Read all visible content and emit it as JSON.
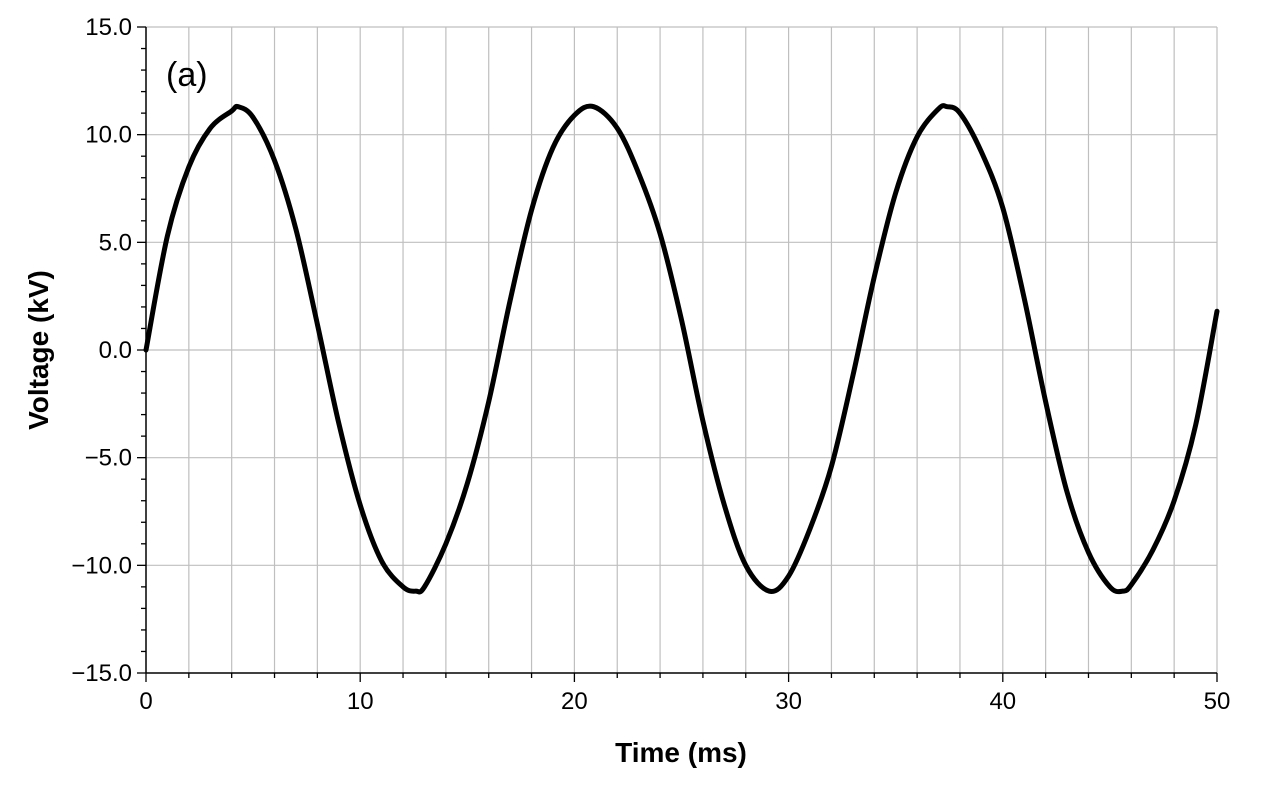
{
  "chart_data": {
    "type": "line",
    "panel_label": "(a)",
    "title": "",
    "xlabel": "Time (ms)",
    "ylabel": "Voltage (kV)",
    "xlim": [
      0,
      50
    ],
    "ylim": [
      -15,
      15
    ],
    "x_ticks": [
      0,
      10,
      20,
      30,
      40,
      50
    ],
    "x_tick_labels": [
      "0",
      "10",
      "20",
      "30",
      "40",
      "50"
    ],
    "x_minor_step": 2,
    "y_ticks": [
      15,
      10,
      5,
      0,
      -5,
      -10,
      -15
    ],
    "y_tick_labels": [
      "15.0",
      "10.0",
      "5.0",
      "0.0",
      "−5.0",
      "−10.0",
      "−15.0"
    ],
    "y_minor_step": 1,
    "grid": true,
    "legend": "none",
    "line_color": "#000000",
    "grid_color": "#bfbfbf",
    "series": [
      {
        "x": [
          0,
          1,
          2,
          3,
          4,
          4.3,
          5,
          6,
          7,
          8,
          9,
          10,
          11,
          12,
          12.6,
          13,
          14,
          15,
          16,
          17,
          18,
          19,
          20,
          20.9,
          22,
          23,
          24,
          25,
          26,
          27,
          28,
          29.1,
          30,
          31,
          32,
          33,
          34,
          35,
          36,
          37,
          37.4,
          38,
          39,
          40,
          41,
          42,
          43,
          44,
          45,
          45.6,
          46,
          47,
          48,
          49,
          50
        ],
        "y": [
          0,
          5.3,
          8.5,
          10.3,
          11.1,
          11.3,
          10.8,
          8.8,
          5.6,
          1.2,
          -3.4,
          -7.2,
          -9.8,
          -11.0,
          -11.2,
          -11.0,
          -9.0,
          -6.2,
          -2.4,
          2.3,
          6.5,
          9.4,
          10.9,
          11.3,
          10.3,
          8.2,
          5.4,
          1.4,
          -3.3,
          -7.2,
          -10.0,
          -11.2,
          -10.5,
          -8.3,
          -5.4,
          -1.2,
          3.4,
          7.3,
          9.9,
          11.2,
          11.3,
          11.0,
          9.2,
          6.6,
          2.4,
          -2.4,
          -6.6,
          -9.4,
          -11.0,
          -11.2,
          -10.9,
          -9.3,
          -7.0,
          -3.5,
          1.8
        ]
      }
    ]
  }
}
